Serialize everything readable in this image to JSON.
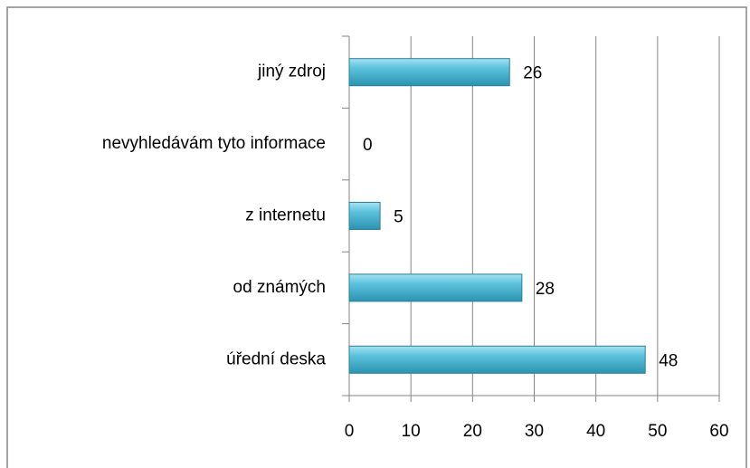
{
  "chart_data": {
    "type": "bar",
    "orientation": "horizontal",
    "categories": [
      "jiný zdroj",
      "nevyhledávám tyto informace",
      "z internetu",
      "od známých",
      "úřední deska"
    ],
    "values": [
      26,
      0,
      5,
      28,
      48
    ],
    "color": "#4bacc6",
    "xlim": [
      0,
      60
    ],
    "xticks": [
      0,
      10,
      20,
      30,
      40,
      50,
      60
    ],
    "grid": true
  }
}
